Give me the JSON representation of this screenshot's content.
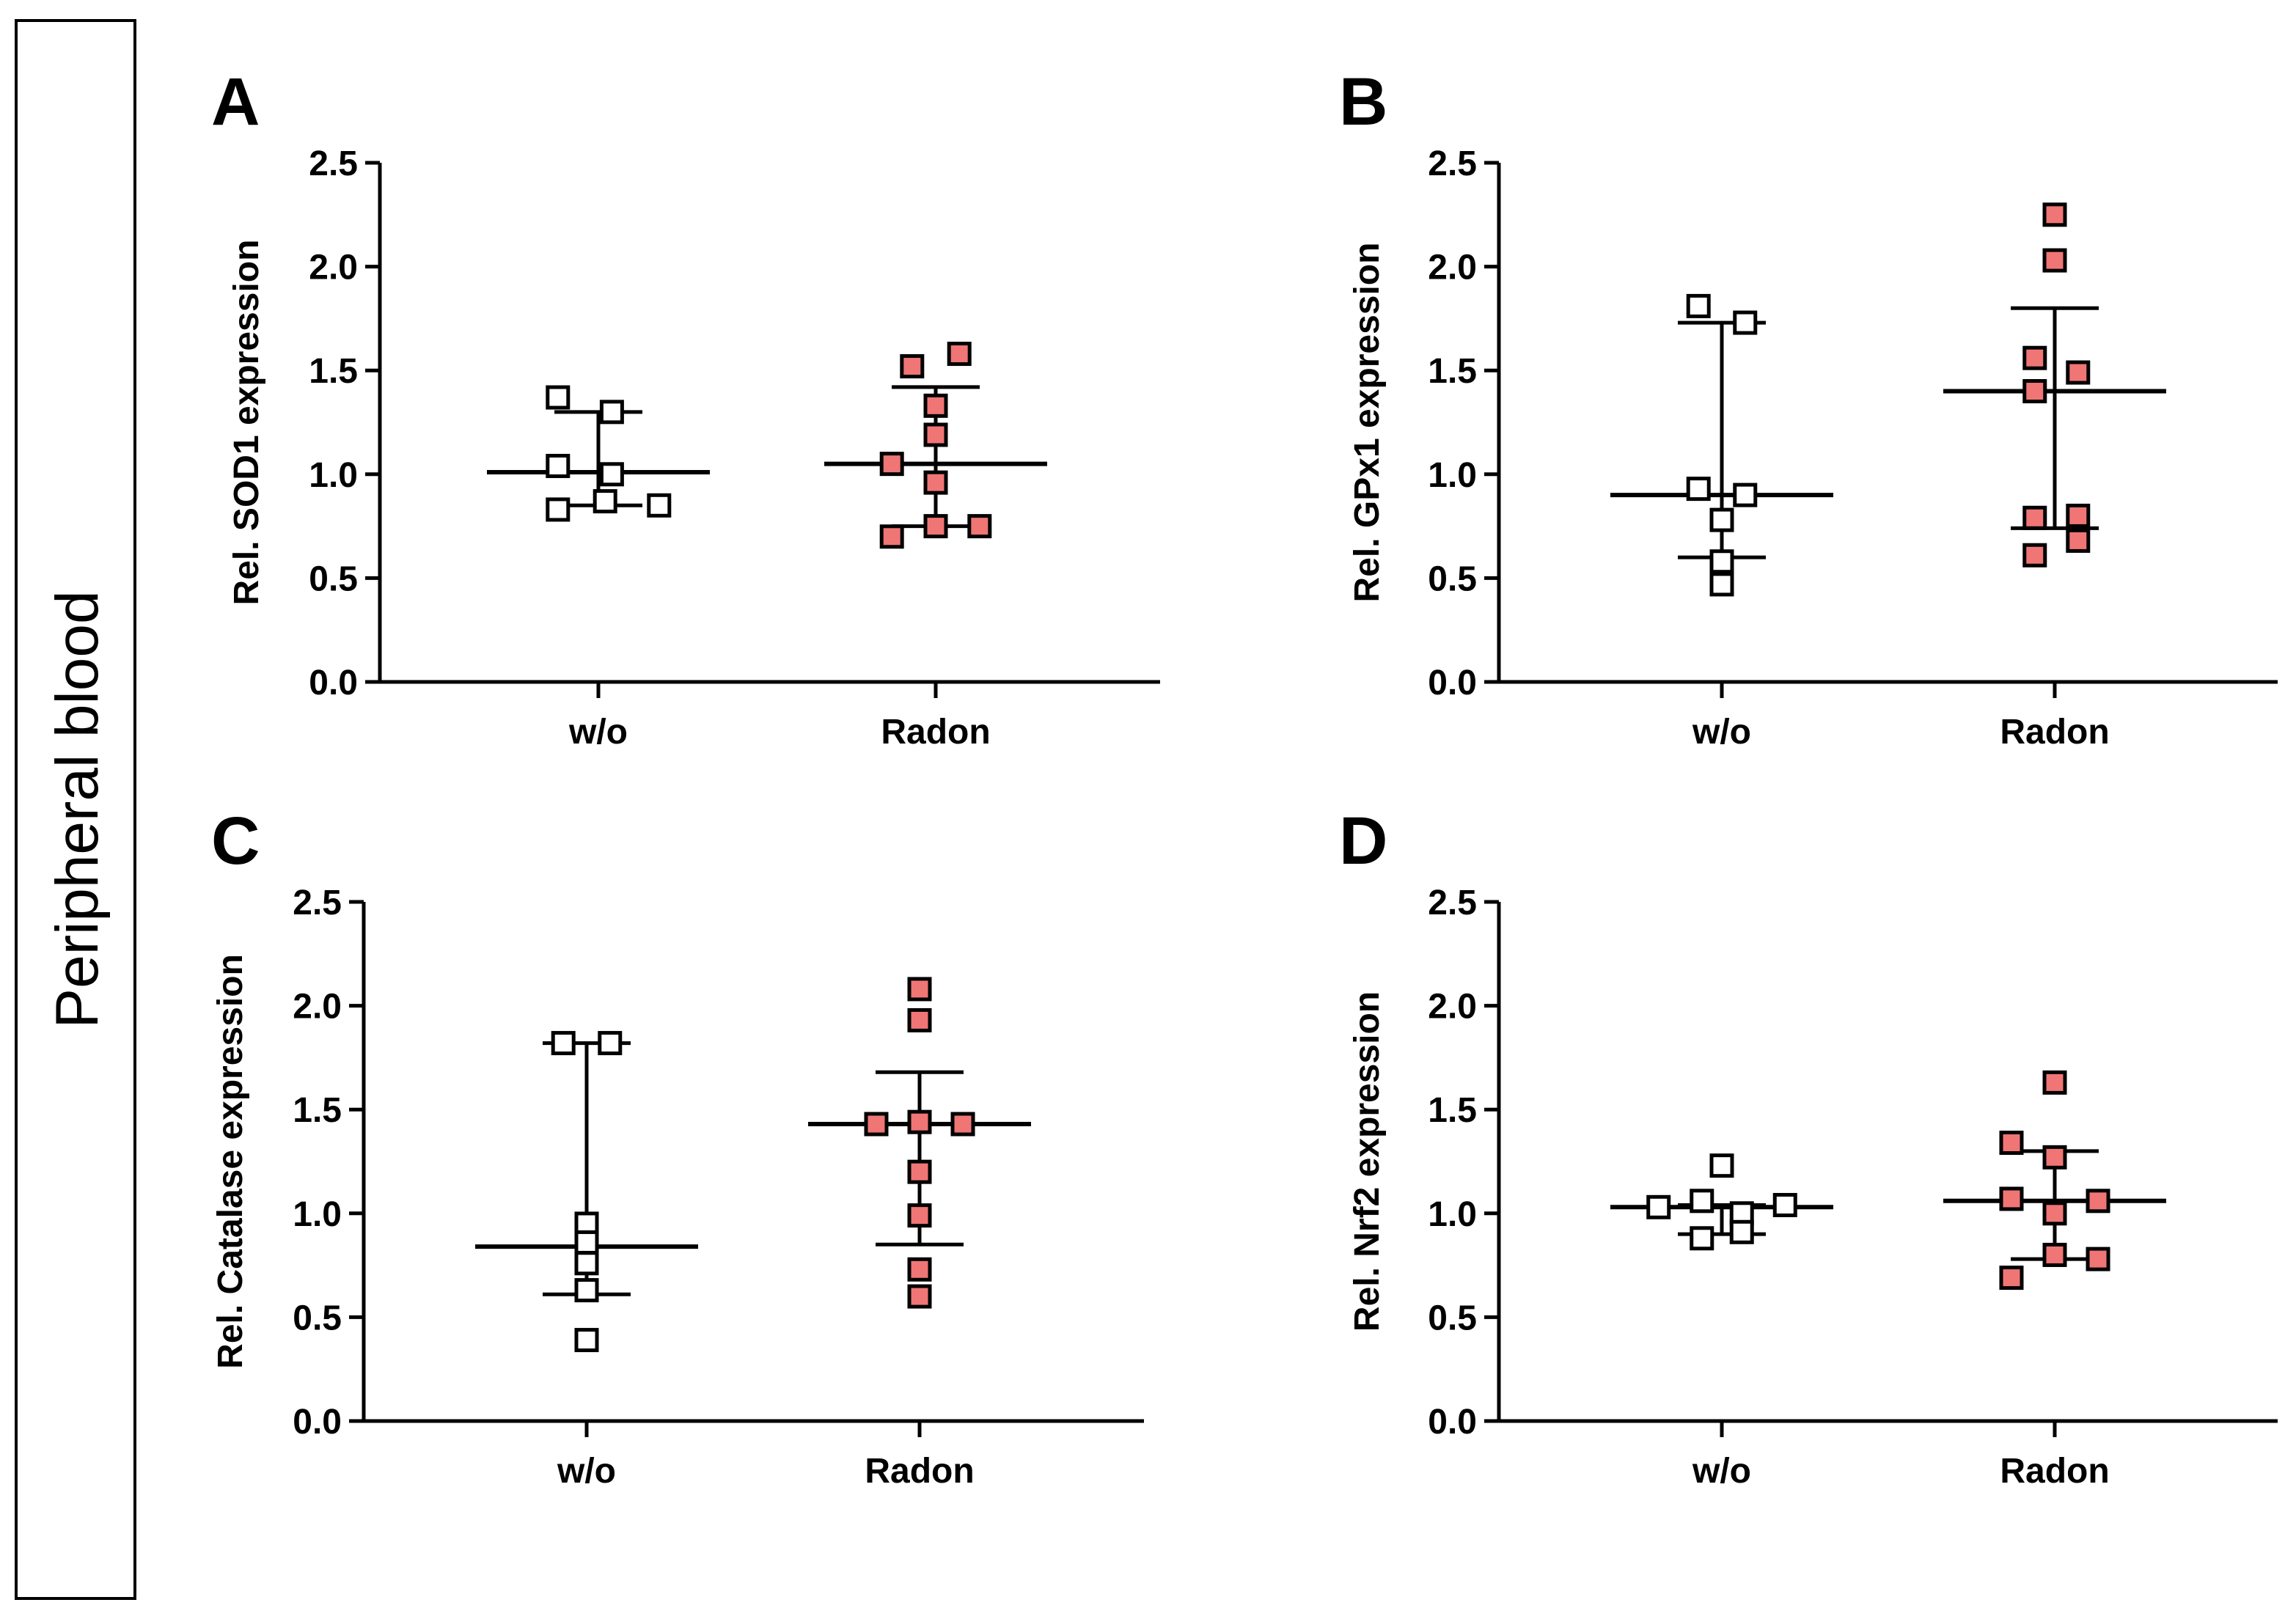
{
  "side_label": "Peripheral blood",
  "colors": {
    "open_marker_fill": "#ffffff",
    "radon_marker_fill": "#f07575",
    "stroke": "#000000"
  },
  "chart_data": [
    {
      "type": "scatter",
      "panel": "A",
      "ylabel": "Rel. SOD1 expression",
      "categories": [
        "w/o",
        "Radon"
      ],
      "ylim": [
        0,
        2.5
      ],
      "yticks": [
        "0.0",
        "0.5",
        "1.0",
        "1.5",
        "2.0",
        "2.5"
      ],
      "series": [
        {
          "category": "w/o",
          "marker": "open",
          "points": [
            [
              -0.12,
              1.37
            ],
            [
              0.04,
              1.3
            ],
            [
              -0.12,
              1.04
            ],
            [
              0.04,
              1.0
            ],
            [
              -0.12,
              0.83
            ],
            [
              0.02,
              0.87
            ],
            [
              0.18,
              0.85
            ]
          ],
          "median": 1.01,
          "iqr": [
            0.85,
            1.3
          ]
        },
        {
          "category": "Radon",
          "marker": "filled",
          "points": [
            [
              -0.07,
              1.52
            ],
            [
              0.07,
              1.58
            ],
            [
              0.0,
              1.33
            ],
            [
              0.0,
              1.19
            ],
            [
              -0.13,
              1.05
            ],
            [
              0.0,
              0.96
            ],
            [
              -0.13,
              0.7
            ],
            [
              0.0,
              0.75
            ],
            [
              0.13,
              0.75
            ]
          ],
          "median": 1.05,
          "iqr": [
            0.75,
            1.42
          ]
        }
      ]
    },
    {
      "type": "scatter",
      "panel": "B",
      "ylabel": "Rel. GPx1 expression",
      "categories": [
        "w/o",
        "Radon"
      ],
      "ylim": [
        0,
        2.5
      ],
      "yticks": [
        "0.0",
        "0.5",
        "1.0",
        "1.5",
        "2.0",
        "2.5"
      ],
      "series": [
        {
          "category": "w/o",
          "marker": "open",
          "points": [
            [
              -0.07,
              1.81
            ],
            [
              0.07,
              1.73
            ],
            [
              -0.07,
              0.93
            ],
            [
              0.07,
              0.9
            ],
            [
              0.0,
              0.78
            ],
            [
              0.0,
              0.58
            ],
            [
              0.0,
              0.47
            ]
          ],
          "median": 0.9,
          "iqr": [
            0.6,
            1.73
          ]
        },
        {
          "category": "Radon",
          "marker": "filled",
          "points": [
            [
              0.0,
              2.25
            ],
            [
              0.0,
              2.03
            ],
            [
              -0.06,
              1.56
            ],
            [
              0.07,
              1.49
            ],
            [
              -0.06,
              1.4
            ],
            [
              -0.06,
              0.79
            ],
            [
              0.07,
              0.8
            ],
            [
              -0.06,
              0.61
            ],
            [
              0.07,
              0.68
            ]
          ],
          "median": 1.4,
          "iqr": [
            0.74,
            1.8
          ]
        }
      ]
    },
    {
      "type": "scatter",
      "panel": "C",
      "ylabel": "Rel. Catalase expression",
      "categories": [
        "w/o",
        "Radon"
      ],
      "ylim": [
        0,
        2.5
      ],
      "yticks": [
        "0.0",
        "0.5",
        "1.0",
        "1.5",
        "2.0",
        "2.5"
      ],
      "series": [
        {
          "category": "w/o",
          "marker": "open",
          "points": [
            [
              -0.07,
              1.82
            ],
            [
              0.07,
              1.82
            ],
            [
              0.0,
              0.95
            ],
            [
              0.0,
              0.86
            ],
            [
              0.0,
              0.76
            ],
            [
              0.0,
              0.63
            ],
            [
              0.0,
              0.39
            ]
          ],
          "median": 0.84,
          "iqr": [
            0.61,
            1.82
          ]
        },
        {
          "category": "Radon",
          "marker": "filled",
          "points": [
            [
              0.0,
              2.08
            ],
            [
              0.0,
              1.93
            ],
            [
              -0.13,
              1.43
            ],
            [
              0.0,
              1.44
            ],
            [
              0.13,
              1.43
            ],
            [
              0.0,
              1.2
            ],
            [
              0.0,
              0.99
            ],
            [
              0.0,
              0.73
            ],
            [
              0.0,
              0.6
            ]
          ],
          "median": 1.43,
          "iqr": [
            0.85,
            1.68
          ]
        }
      ]
    },
    {
      "type": "scatter",
      "panel": "D",
      "ylabel": "Rel. Nrf2 expression",
      "categories": [
        "w/o",
        "Radon"
      ],
      "ylim": [
        0,
        2.5
      ],
      "yticks": [
        "0.0",
        "0.5",
        "1.0",
        "1.5",
        "2.0",
        "2.5"
      ],
      "series": [
        {
          "category": "w/o",
          "marker": "open",
          "points": [
            [
              0.0,
              1.23
            ],
            [
              -0.19,
              1.03
            ],
            [
              -0.06,
              1.06
            ],
            [
              0.06,
              1.0
            ],
            [
              0.19,
              1.04
            ],
            [
              -0.06,
              0.88
            ],
            [
              0.06,
              0.91
            ]
          ],
          "median": 1.03,
          "iqr": [
            0.9,
            1.04
          ]
        },
        {
          "category": "Radon",
          "marker": "filled",
          "points": [
            [
              0.0,
              1.63
            ],
            [
              -0.13,
              1.34
            ],
            [
              0.0,
              1.27
            ],
            [
              -0.13,
              1.07
            ],
            [
              0.13,
              1.06
            ],
            [
              0.0,
              1.0
            ],
            [
              0.0,
              0.8
            ],
            [
              0.13,
              0.78
            ],
            [
              -0.13,
              0.69
            ]
          ],
          "median": 1.06,
          "iqr": [
            0.78,
            1.3
          ]
        }
      ]
    }
  ]
}
